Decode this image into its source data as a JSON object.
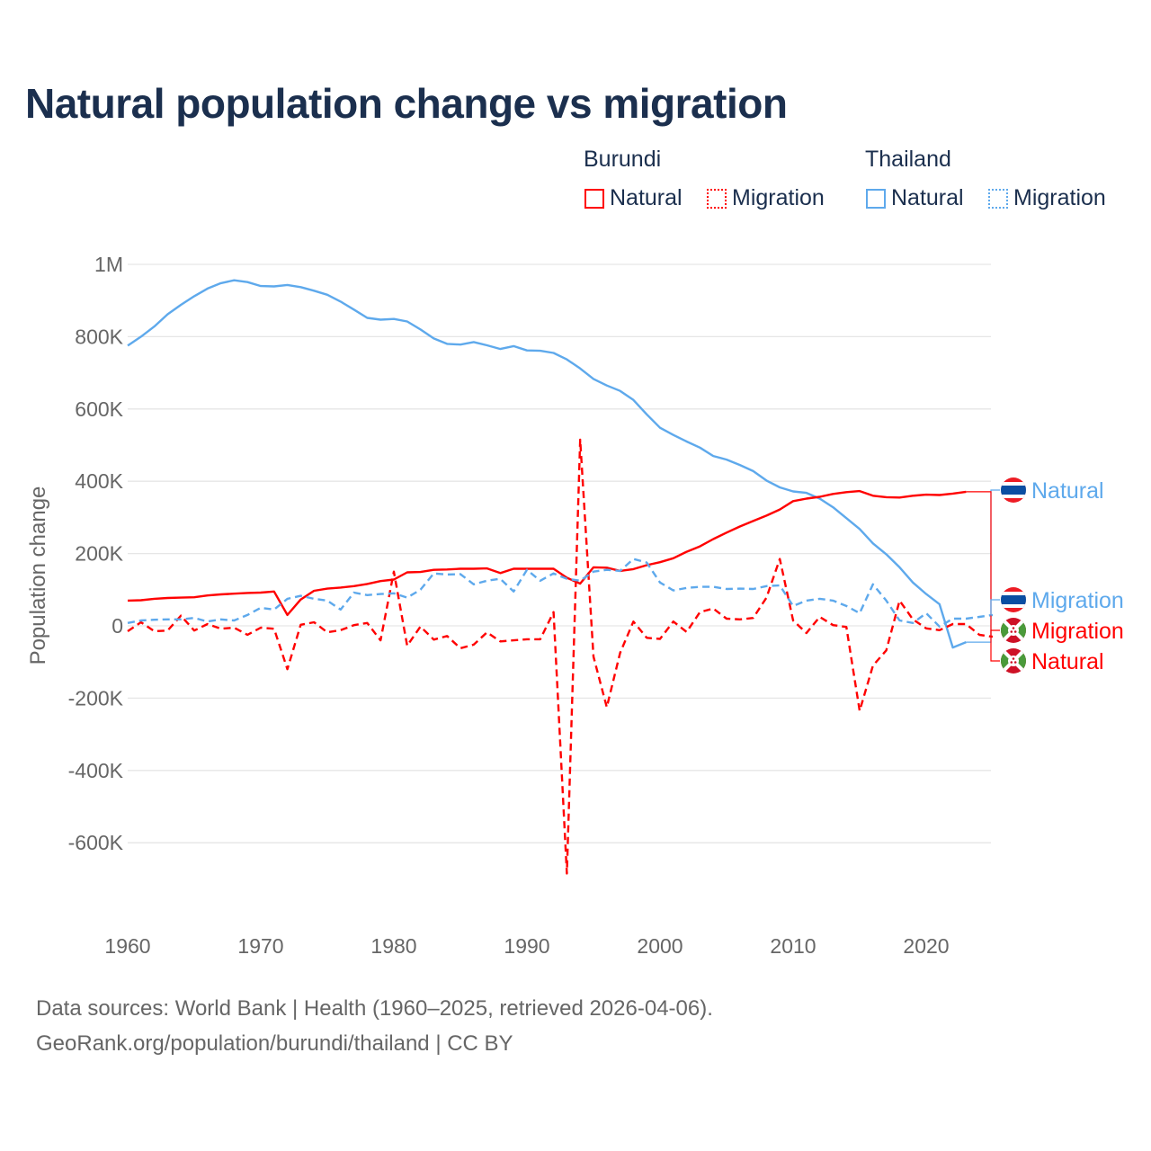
{
  "title": "Natural population change vs migration",
  "legend": {
    "groups": [
      {
        "name": "Burundi",
        "color": "#ff0000",
        "items": [
          {
            "label": "Natural",
            "style": "solid"
          },
          {
            "label": "Migration",
            "style": "dotted"
          }
        ]
      },
      {
        "name": "Thailand",
        "color": "#5ea9ec",
        "items": [
          {
            "label": "Natural",
            "style": "solid"
          },
          {
            "label": "Migration",
            "style": "dotted"
          }
        ]
      }
    ]
  },
  "footer": {
    "line1": "Data sources: World Bank | Health (1960–2025, retrieved 2026-04-06).",
    "line2": "GeoRank.org/population/burundi/thailand | CC BY"
  },
  "chart_data": {
    "type": "line",
    "title": "Natural population change vs migration",
    "xlabel": "",
    "ylabel": "Population change",
    "xlim": [
      1960,
      2025
    ],
    "ylim": [
      -700000,
      1000000
    ],
    "x_ticks": [
      1960,
      1970,
      1980,
      1990,
      2000,
      2010,
      2020
    ],
    "x_tick_labels": [
      "1960",
      "1970",
      "1980",
      "1990",
      "2000",
      "2010",
      "2020"
    ],
    "y_ticks": [
      1000000,
      800000,
      600000,
      400000,
      200000,
      0,
      -200000,
      -400000,
      -600000
    ],
    "y_tick_labels": [
      "1M",
      "800K",
      "600K",
      "400K",
      "200K",
      "0",
      "-200K",
      "-400K",
      "-600K"
    ],
    "grid": true,
    "legend_placement": "top-right",
    "start_year": 1960,
    "series": [
      {
        "name": "Thailand Natural",
        "end_label": "Natural",
        "country": "Thailand",
        "color": "#5ea9ec",
        "dash": "solid",
        "values": [
          775000,
          800000,
          828000,
          862000,
          888000,
          912000,
          933000,
          948000,
          956000,
          951000,
          940000,
          939000,
          943000,
          937000,
          927000,
          916000,
          897000,
          875000,
          852000,
          847000,
          849000,
          842000,
          820000,
          795000,
          780000,
          778000,
          785000,
          776000,
          766000,
          774000,
          762000,
          761000,
          755000,
          737000,
          712000,
          683000,
          665000,
          650000,
          625000,
          585000,
          548000,
          528000,
          510000,
          493000,
          470000,
          460000,
          445000,
          428000,
          402000,
          383000,
          372000,
          368000,
          352000,
          328000,
          298000,
          268000,
          228000,
          198000,
          162000,
          120000,
          88000,
          60000,
          -60000,
          -45000
        ]
      },
      {
        "name": "Burundi Natural",
        "end_label": "Natural",
        "country": "Burundi",
        "color": "#ff0000",
        "dash": "solid",
        "values": [
          70000,
          71000,
          75000,
          77000,
          78000,
          79000,
          84000,
          87000,
          89000,
          91000,
          92000,
          95000,
          30000,
          73000,
          97000,
          103000,
          106000,
          110000,
          116000,
          124000,
          128000,
          148000,
          149000,
          155000,
          156000,
          158000,
          158000,
          159000,
          146000,
          158000,
          158000,
          158000,
          158000,
          133000,
          117000,
          162000,
          161000,
          152000,
          157000,
          168000,
          176000,
          187000,
          205000,
          220000,
          240000,
          258000,
          275000,
          290000,
          305000,
          322000,
          345000,
          352000,
          357000,
          365000,
          370000,
          373000,
          360000,
          356000,
          355000,
          360000,
          363000,
          362000,
          366000,
          371000
        ]
      },
      {
        "name": "Burundi Migration",
        "end_label": "Migration",
        "country": "Burundi",
        "color": "#ff0000",
        "dash": "dashed",
        "values": [
          -15000,
          10000,
          -15000,
          -13000,
          28000,
          -13000,
          5000,
          -8000,
          -5000,
          -25000,
          -5000,
          -8000,
          -120000,
          3000,
          10000,
          -18000,
          -12000,
          2000,
          8000,
          -40000,
          150000,
          -55000,
          -2000,
          -38000,
          -28000,
          -62000,
          -52000,
          -18000,
          -43000,
          -40000,
          -37000,
          -37000,
          38000,
          -685000,
          515000,
          -85000,
          -225000,
          -75000,
          12000,
          -33000,
          -36000,
          12000,
          -17000,
          38000,
          48000,
          20000,
          18000,
          22000,
          78000,
          185000,
          15000,
          -20000,
          25000,
          2000,
          -3000,
          -235000,
          -110000,
          -68000,
          70000,
          18000,
          -7000,
          -12000,
          5000,
          5000,
          -25000,
          -30000
        ]
      },
      {
        "name": "Thailand Migration",
        "end_label": "Migration",
        "country": "Thailand",
        "color": "#5ea9ec",
        "dash": "dashed",
        "values": [
          8000,
          15000,
          17000,
          18000,
          18000,
          22000,
          12000,
          18000,
          15000,
          30000,
          50000,
          45000,
          75000,
          83000,
          75000,
          70000,
          45000,
          92000,
          85000,
          88000,
          90000,
          78000,
          100000,
          145000,
          142000,
          143000,
          115000,
          125000,
          130000,
          95000,
          155000,
          125000,
          145000,
          130000,
          125000,
          150000,
          155000,
          152000,
          185000,
          175000,
          120000,
          98000,
          105000,
          108000,
          108000,
          102000,
          103000,
          102000,
          110000,
          112000,
          55000,
          70000,
          75000,
          70000,
          55000,
          35000,
          115000,
          70000,
          15000,
          8000,
          35000,
          -2000,
          20000,
          20000,
          25000,
          30000
        ]
      }
    ]
  }
}
